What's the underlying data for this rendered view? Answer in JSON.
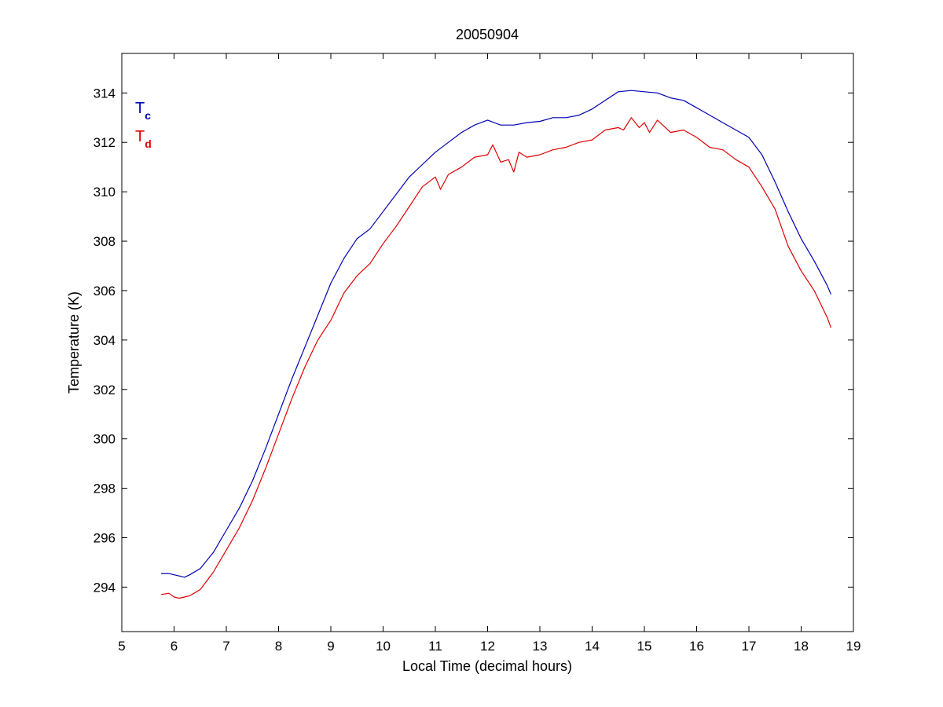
{
  "chart_data": {
    "type": "line",
    "title": "20050904",
    "xlabel": "Local Time (decimal hours)",
    "ylabel": "Temperature (K)",
    "xlim": [
      5,
      19
    ],
    "ylim": [
      292.2,
      315.6
    ],
    "xticks": [
      5,
      6,
      7,
      8,
      9,
      10,
      11,
      12,
      13,
      14,
      15,
      16,
      17,
      18,
      19
    ],
    "yticks": [
      294,
      296,
      298,
      300,
      302,
      304,
      306,
      308,
      310,
      312,
      314
    ],
    "grid": false,
    "legend_position": "top-left",
    "series": [
      {
        "name": "T",
        "subscript": "c",
        "color": "#0000b4",
        "x": [
          5.75,
          5.9,
          6.0,
          6.1,
          6.2,
          6.3,
          6.5,
          6.75,
          7.0,
          7.25,
          7.5,
          7.75,
          8.0,
          8.25,
          8.5,
          8.75,
          9.0,
          9.25,
          9.5,
          9.75,
          10.0,
          10.25,
          10.5,
          10.75,
          11.0,
          11.25,
          11.5,
          11.75,
          12.0,
          12.25,
          12.5,
          12.75,
          13.0,
          13.25,
          13.5,
          13.75,
          14.0,
          14.25,
          14.5,
          14.75,
          15.0,
          15.25,
          15.5,
          15.75,
          16.0,
          16.25,
          16.5,
          16.75,
          17.0,
          17.25,
          17.5,
          17.75,
          18.0,
          18.25,
          18.5,
          18.57
        ],
        "values": [
          294.55,
          294.55,
          294.5,
          294.45,
          294.4,
          294.5,
          294.75,
          295.4,
          296.3,
          297.2,
          298.3,
          299.6,
          301.0,
          302.4,
          303.7,
          305.0,
          306.3,
          307.3,
          308.1,
          308.5,
          309.2,
          309.9,
          310.6,
          311.1,
          311.6,
          312.0,
          312.4,
          312.7,
          312.9,
          312.7,
          312.7,
          312.8,
          312.85,
          313.0,
          313.0,
          313.1,
          313.35,
          313.7,
          314.05,
          314.1,
          314.05,
          314.0,
          313.8,
          313.7,
          313.4,
          313.1,
          312.8,
          312.5,
          312.2,
          311.5,
          310.4,
          309.2,
          308.1,
          307.2,
          306.2,
          305.85
        ]
      },
      {
        "name": "T",
        "subscript": "d",
        "color": "#e00000",
        "x": [
          5.75,
          5.9,
          6.0,
          6.1,
          6.2,
          6.3,
          6.5,
          6.75,
          7.0,
          7.25,
          7.5,
          7.75,
          8.0,
          8.25,
          8.5,
          8.75,
          9.0,
          9.25,
          9.5,
          9.75,
          10.0,
          10.25,
          10.5,
          10.75,
          11.0,
          11.1,
          11.25,
          11.5,
          11.75,
          12.0,
          12.1,
          12.25,
          12.4,
          12.5,
          12.6,
          12.75,
          13.0,
          13.25,
          13.5,
          13.75,
          14.0,
          14.25,
          14.5,
          14.6,
          14.75,
          14.9,
          15.0,
          15.1,
          15.25,
          15.5,
          15.75,
          16.0,
          16.25,
          16.5,
          16.75,
          17.0,
          17.25,
          17.5,
          17.75,
          18.0,
          18.25,
          18.5,
          18.57
        ],
        "values": [
          293.7,
          293.75,
          293.6,
          293.55,
          293.6,
          293.65,
          293.9,
          294.6,
          295.5,
          296.4,
          297.5,
          298.8,
          300.2,
          301.6,
          302.9,
          304.0,
          304.8,
          305.9,
          306.6,
          307.1,
          307.9,
          308.6,
          309.4,
          310.2,
          310.6,
          310.1,
          310.7,
          311.0,
          311.4,
          311.5,
          311.9,
          311.2,
          311.3,
          310.8,
          311.6,
          311.4,
          311.5,
          311.7,
          311.8,
          312.0,
          312.1,
          312.5,
          312.6,
          312.5,
          313.0,
          312.6,
          312.8,
          312.4,
          312.9,
          312.4,
          312.5,
          312.2,
          311.8,
          311.7,
          311.3,
          311.0,
          310.2,
          309.3,
          307.8,
          306.8,
          306.0,
          304.9,
          304.5
        ]
      }
    ]
  }
}
